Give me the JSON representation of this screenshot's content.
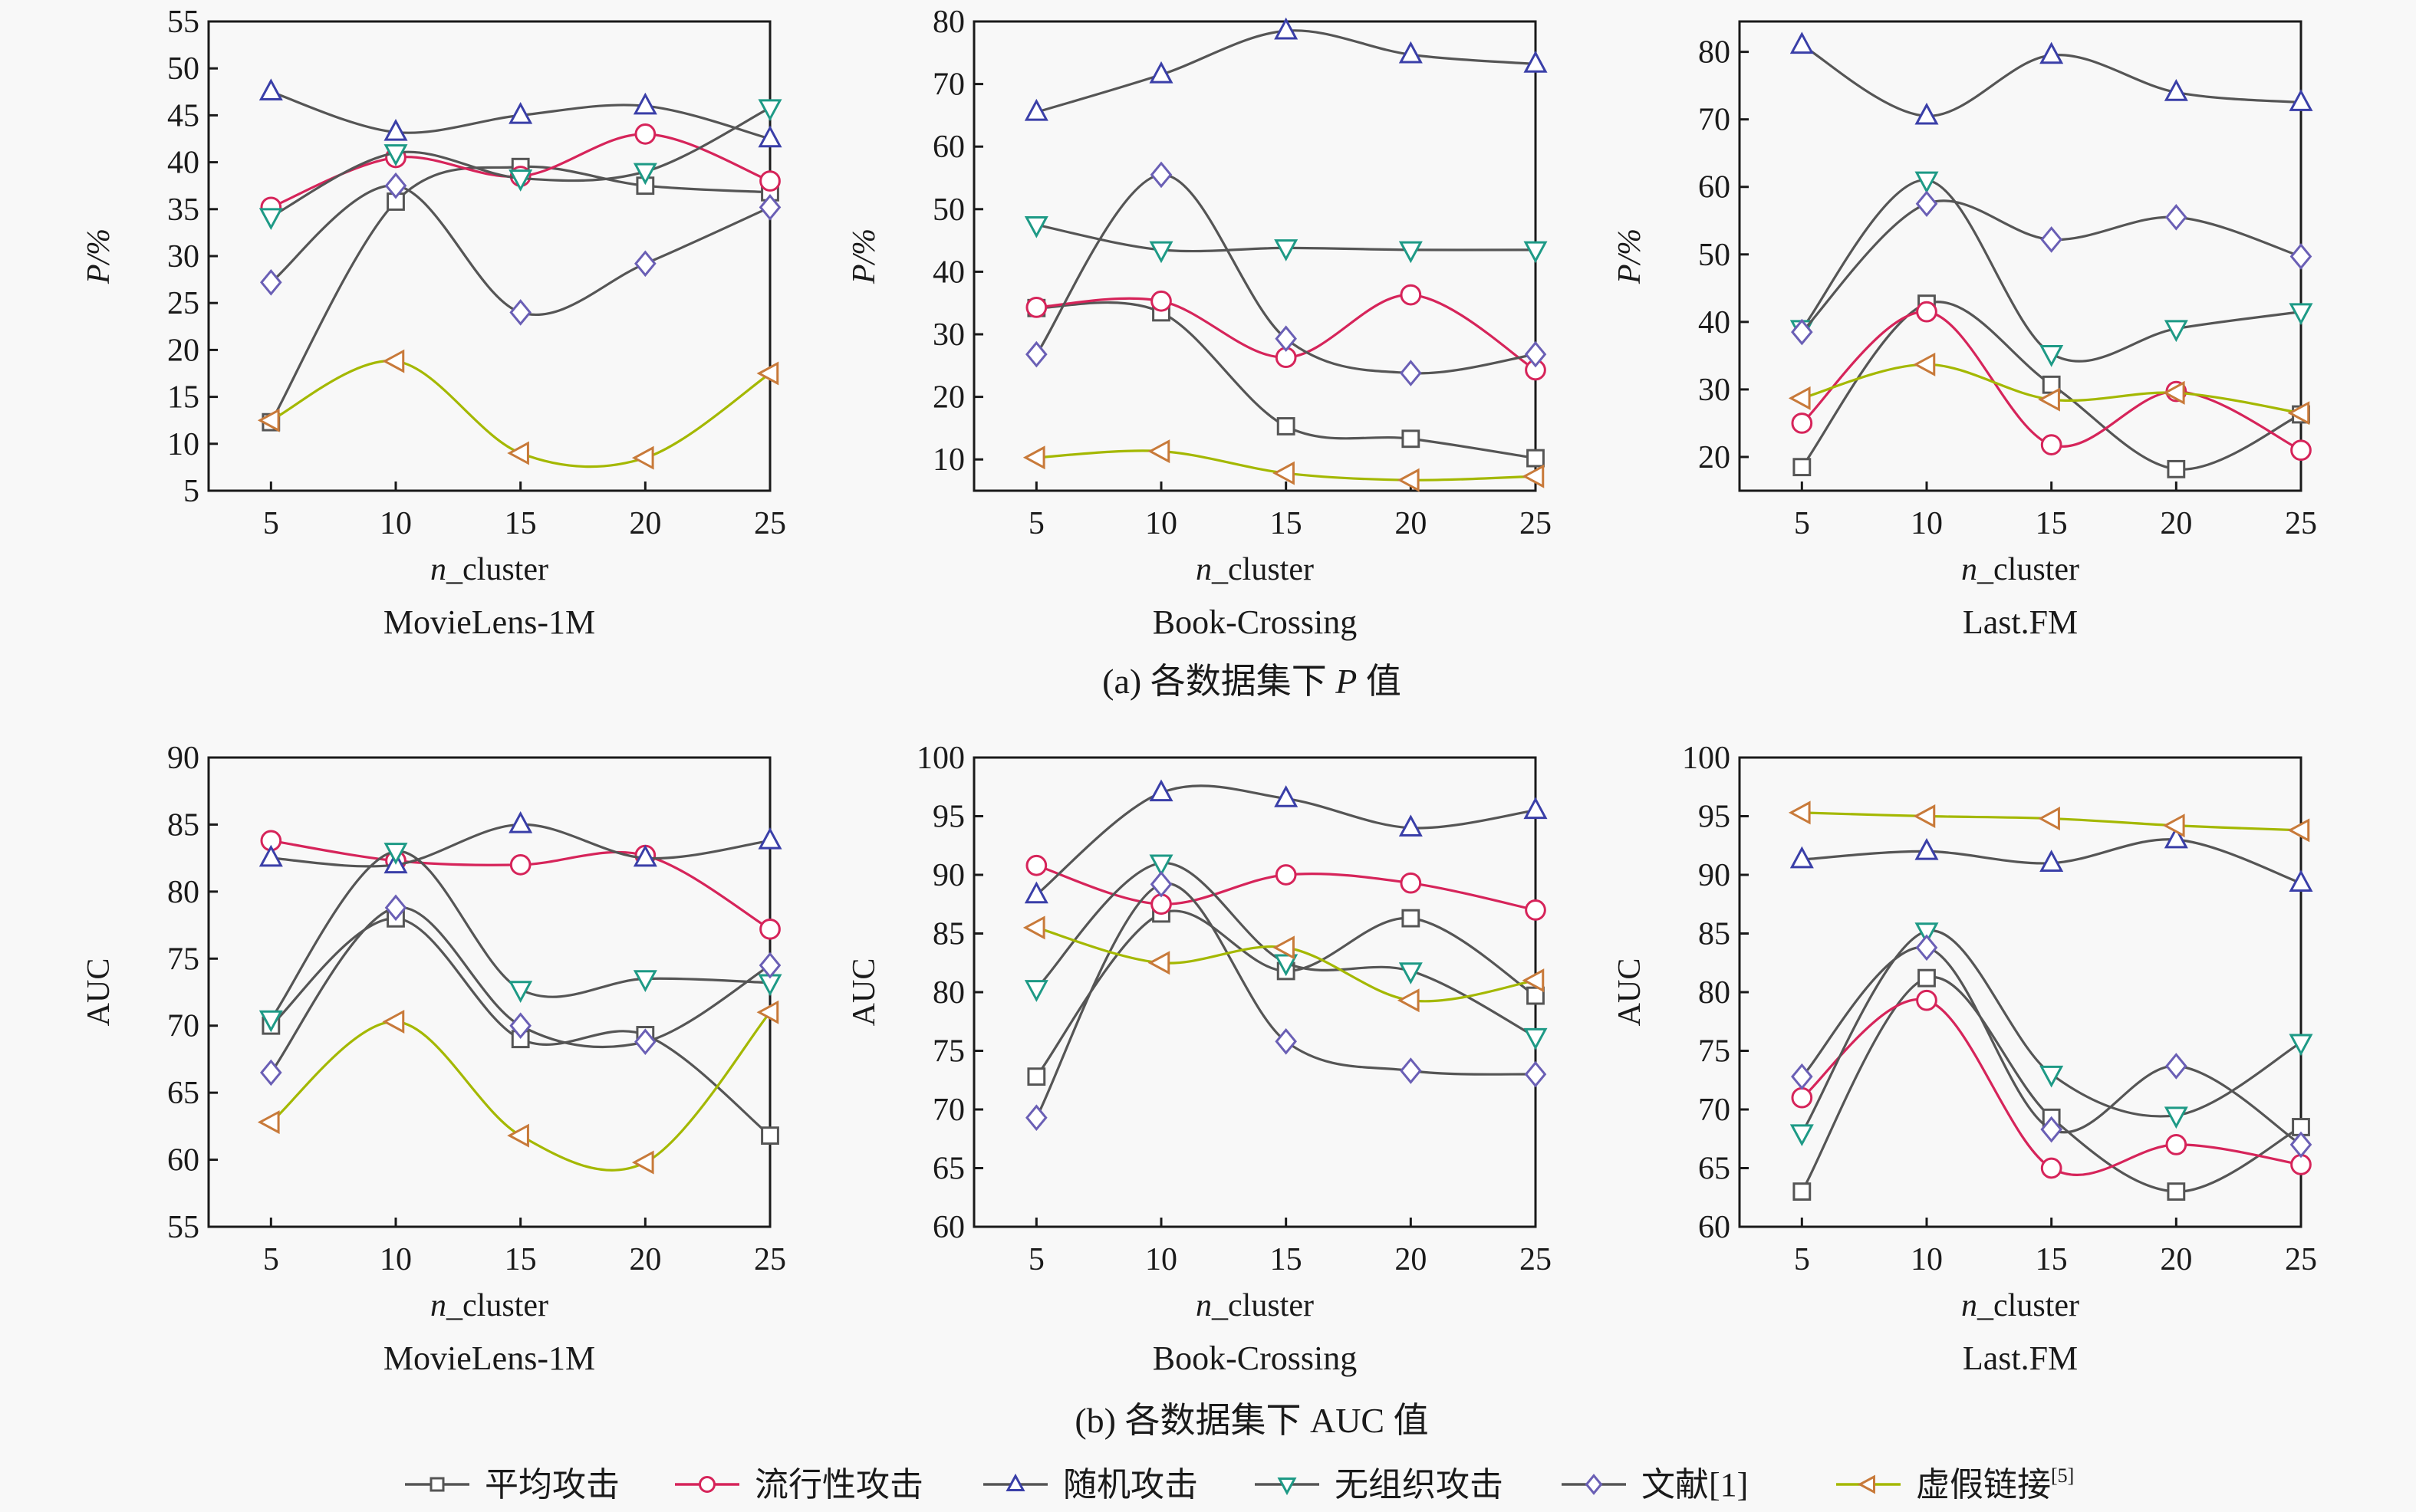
{
  "chart_data": [
    {
      "type": "line",
      "group": "a",
      "dataset": "MovieLens-1M",
      "xlabel_italic": "n",
      "xlabel_rest": "_cluster",
      "ylabel": "P/%",
      "x": [
        5,
        10,
        15,
        20,
        25
      ],
      "xlim": [
        2.5,
        25
      ],
      "ylim": [
        5,
        55
      ],
      "yticks": [
        5,
        10,
        15,
        20,
        25,
        30,
        35,
        40,
        45,
        50,
        55
      ],
      "grid": false,
      "series": [
        {
          "name": "平均攻击",
          "values": [
            12.3,
            35.8,
            39.5,
            37.5,
            36.8
          ]
        },
        {
          "name": "流行性攻击",
          "values": [
            35.2,
            40.5,
            38.5,
            43.0,
            38.0
          ]
        },
        {
          "name": "随机攻击",
          "values": [
            47.5,
            43.2,
            45.0,
            46.0,
            42.5
          ]
        },
        {
          "name": "无组织攻击",
          "values": [
            34.2,
            41.0,
            38.3,
            39.0,
            45.8
          ]
        },
        {
          "name": "文献[1]",
          "values": [
            27.2,
            37.5,
            24.0,
            29.2,
            35.2
          ]
        },
        {
          "name": "虚假链接[5]",
          "values": [
            12.5,
            18.8,
            9.0,
            8.5,
            17.5
          ]
        }
      ]
    },
    {
      "type": "line",
      "group": "a",
      "dataset": "Book-Crossing",
      "xlabel_italic": "n",
      "xlabel_rest": "_cluster",
      "ylabel": "P/%",
      "x": [
        5,
        10,
        15,
        20,
        25
      ],
      "xlim": [
        2.5,
        25
      ],
      "ylim": [
        5,
        80
      ],
      "yticks": [
        10,
        20,
        30,
        40,
        50,
        60,
        70,
        80
      ],
      "grid": false,
      "series": [
        {
          "name": "平均攻击",
          "values": [
            34.2,
            33.5,
            15.3,
            13.3,
            10.2
          ]
        },
        {
          "name": "流行性攻击",
          "values": [
            34.3,
            35.3,
            26.3,
            36.3,
            24.3
          ]
        },
        {
          "name": "随机攻击",
          "values": [
            65.5,
            71.5,
            78.5,
            74.7,
            73.2
          ]
        },
        {
          "name": "无组织攻击",
          "values": [
            47.5,
            43.5,
            43.8,
            43.5,
            43.5
          ]
        },
        {
          "name": "文献[1]",
          "values": [
            26.8,
            55.5,
            29.3,
            23.8,
            26.8
          ]
        },
        {
          "name": "虚假链接[5]",
          "values": [
            10.3,
            11.3,
            7.8,
            6.7,
            7.3
          ]
        }
      ]
    },
    {
      "type": "line",
      "group": "a",
      "dataset": "Last.FM",
      "xlabel_italic": "n",
      "xlabel_rest": "_cluster",
      "ylabel": "P/%",
      "x": [
        5,
        10,
        15,
        20,
        25
      ],
      "xlim": [
        2.5,
        25
      ],
      "ylim": [
        15,
        84.5
      ],
      "yticks": [
        20,
        30,
        40,
        50,
        60,
        70,
        80
      ],
      "grid": false,
      "series": [
        {
          "name": "平均攻击",
          "values": [
            18.5,
            42.7,
            30.7,
            18.2,
            26.3
          ]
        },
        {
          "name": "流行性攻击",
          "values": [
            25.0,
            41.5,
            21.8,
            29.7,
            21.0
          ]
        },
        {
          "name": "随机攻击",
          "values": [
            81.0,
            70.5,
            79.5,
            74.0,
            72.5
          ]
        },
        {
          "name": "无组织攻击",
          "values": [
            39.0,
            61.0,
            35.3,
            39.0,
            41.5
          ]
        },
        {
          "name": "文献[1]",
          "values": [
            38.5,
            57.5,
            52.2,
            55.5,
            49.7
          ]
        },
        {
          "name": "虚假链接[5]",
          "values": [
            28.7,
            33.7,
            28.5,
            29.5,
            26.5
          ]
        }
      ]
    },
    {
      "type": "line",
      "group": "b",
      "dataset": "MovieLens-1M",
      "xlabel_italic": "n",
      "xlabel_rest": "_cluster",
      "ylabel": "AUC",
      "x": [
        5,
        10,
        15,
        20,
        25
      ],
      "xlim": [
        2.5,
        25
      ],
      "ylim": [
        55,
        90
      ],
      "yticks": [
        55,
        60,
        65,
        70,
        75,
        80,
        85,
        90
      ],
      "grid": false,
      "series": [
        {
          "name": "平均攻击",
          "values": [
            70.0,
            78.0,
            69.0,
            69.3,
            61.8
          ]
        },
        {
          "name": "流行性攻击",
          "values": [
            83.8,
            82.3,
            82.0,
            82.7,
            77.2
          ]
        },
        {
          "name": "随机攻击",
          "values": [
            82.5,
            82.0,
            85.0,
            82.5,
            83.8
          ]
        },
        {
          "name": "无组织攻击",
          "values": [
            70.5,
            83.0,
            72.7,
            73.5,
            73.2
          ]
        },
        {
          "name": "文献[1]",
          "values": [
            66.5,
            78.8,
            70.0,
            68.8,
            74.5
          ]
        },
        {
          "name": "虚假链接[5]",
          "values": [
            62.8,
            70.3,
            61.8,
            59.8,
            71.0
          ]
        }
      ]
    },
    {
      "type": "line",
      "group": "b",
      "dataset": "Book-Crossing",
      "xlabel_italic": "n",
      "xlabel_rest": "_cluster",
      "ylabel": "AUC",
      "x": [
        5,
        10,
        15,
        20,
        25
      ],
      "xlim": [
        2.5,
        25
      ],
      "ylim": [
        60,
        100
      ],
      "yticks": [
        60,
        65,
        70,
        75,
        80,
        85,
        90,
        95,
        100
      ],
      "grid": false,
      "series": [
        {
          "name": "平均攻击",
          "values": [
            72.8,
            86.7,
            81.8,
            86.3,
            79.7
          ]
        },
        {
          "name": "流行性攻击",
          "values": [
            90.8,
            87.5,
            90.0,
            89.3,
            87.0
          ]
        },
        {
          "name": "随机攻击",
          "values": [
            88.3,
            97.0,
            96.5,
            94.0,
            95.5
          ]
        },
        {
          "name": "无组织攻击",
          "values": [
            80.3,
            91.0,
            82.5,
            81.8,
            76.2
          ]
        },
        {
          "name": "文献[1]",
          "values": [
            69.3,
            89.2,
            75.8,
            73.3,
            73.0
          ]
        },
        {
          "name": "虚假链接[5]",
          "values": [
            85.5,
            82.5,
            83.8,
            79.3,
            81.0
          ]
        }
      ]
    },
    {
      "type": "line",
      "group": "b",
      "dataset": "Last.FM",
      "xlabel_italic": "n",
      "xlabel_rest": "_cluster",
      "ylabel": "AUC",
      "x": [
        5,
        10,
        15,
        20,
        25
      ],
      "xlim": [
        2.5,
        25
      ],
      "ylim": [
        60,
        100
      ],
      "yticks": [
        60,
        65,
        70,
        75,
        80,
        85,
        90,
        95,
        100
      ],
      "grid": false,
      "series": [
        {
          "name": "平均攻击",
          "values": [
            63.0,
            81.2,
            69.3,
            63.0,
            68.5
          ]
        },
        {
          "name": "流行性攻击",
          "values": [
            71.0,
            79.3,
            65.0,
            67.0,
            65.3
          ]
        },
        {
          "name": "随机攻击",
          "values": [
            91.3,
            92.0,
            91.0,
            93.0,
            89.3
          ]
        },
        {
          "name": "无组织攻击",
          "values": [
            68.0,
            85.2,
            73.0,
            69.5,
            75.7
          ]
        },
        {
          "name": "文献[1]",
          "values": [
            72.8,
            83.8,
            68.3,
            73.7,
            67.0
          ]
        },
        {
          "name": "虚假链接[5]",
          "values": [
            95.3,
            95.0,
            94.8,
            94.2,
            93.8
          ]
        }
      ]
    }
  ],
  "captions": {
    "a_prefix": "(a) 各数据集下 ",
    "a_italic": "P",
    "a_suffix": " 值",
    "b": "(b) 各数据集下 AUC 值"
  },
  "legend": {
    "position": "bottom-center",
    "items": [
      {
        "label": "平均攻击",
        "marker": "square",
        "line_color": "#555555",
        "marker_color": "#555555"
      },
      {
        "label": "流行性攻击",
        "marker": "circle",
        "line_color": "#d6245a",
        "marker_color": "#d6245a"
      },
      {
        "label": "随机攻击",
        "marker": "triangle-up",
        "line_color": "#555555",
        "marker_color": "#3a3fa8"
      },
      {
        "label": "无组织攻击",
        "marker": "triangle-down",
        "line_color": "#555555",
        "marker_color": "#1e9a86"
      },
      {
        "label": "文献",
        "ref": "[1]",
        "marker": "diamond",
        "line_color": "#555555",
        "marker_color": "#6a5fb5"
      },
      {
        "label": "虚假链接",
        "ref": "[5]",
        "marker": "triangle-left",
        "line_color": "#a4b800",
        "marker_color": "#c87a3a"
      }
    ]
  }
}
